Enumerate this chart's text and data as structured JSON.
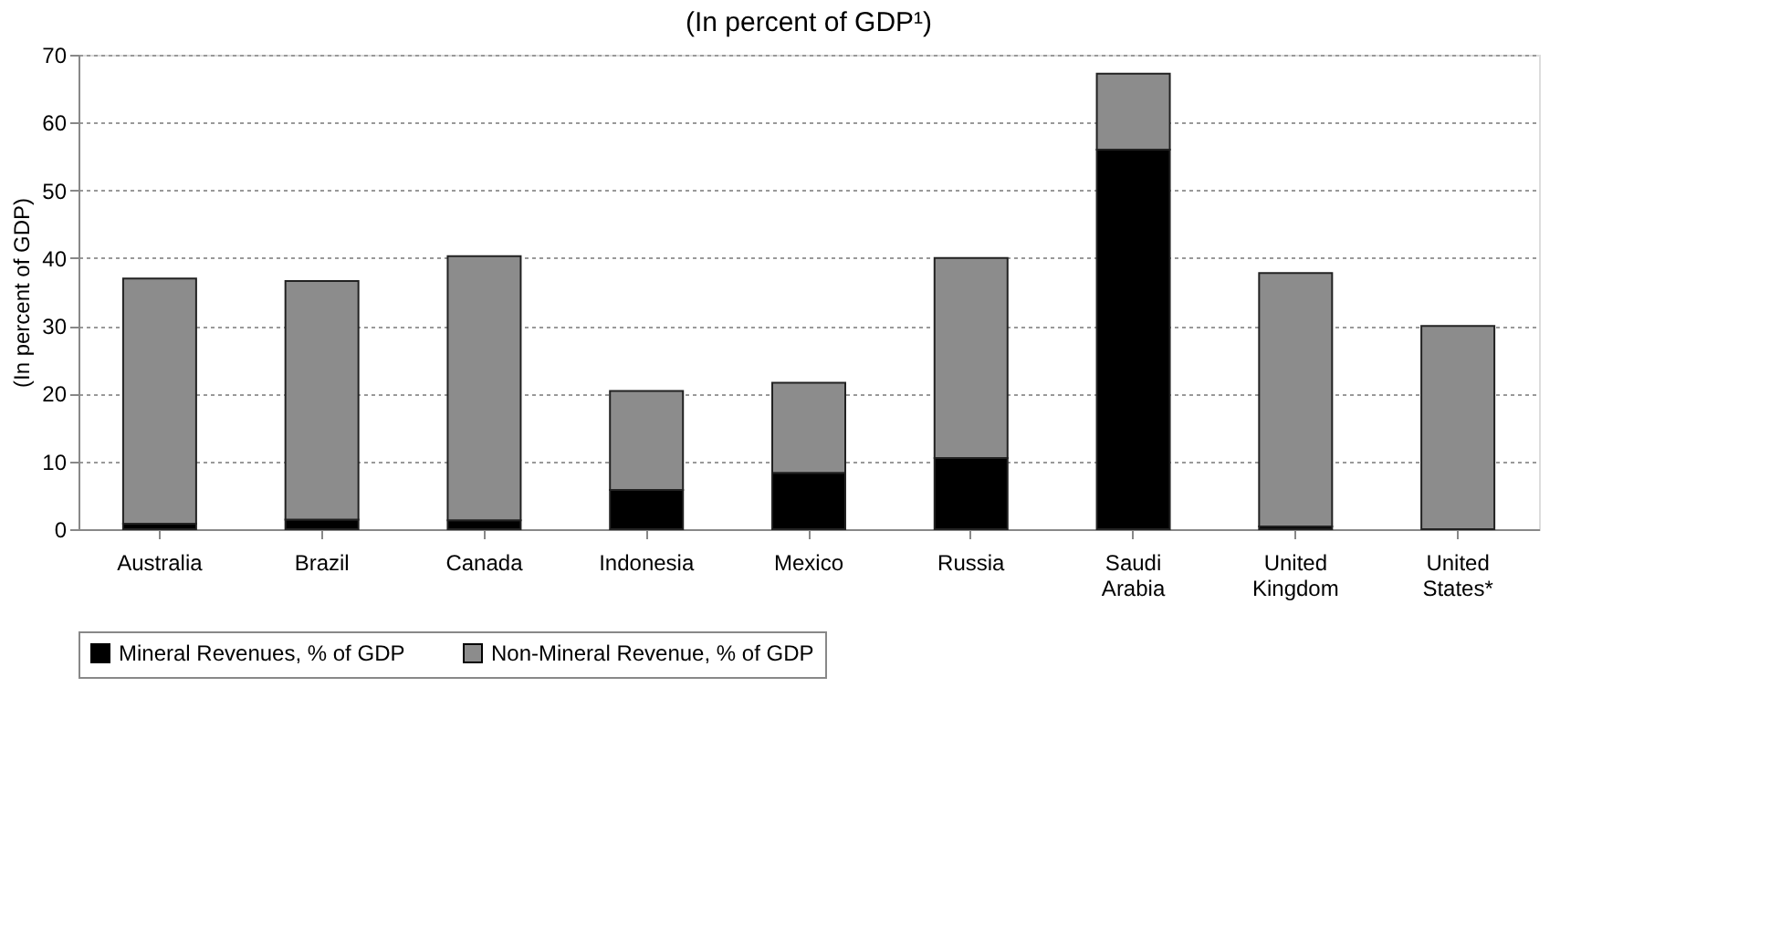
{
  "chart_data": {
    "type": "bar",
    "title": "(In percent of GDP¹)",
    "ylabel": "(In percent of GDP)",
    "categories": [
      "Australia",
      "Brazil",
      "Canada",
      "Indonesia",
      "Mexico",
      "Russia",
      "Saudi Arabia",
      "United Kingdom",
      "United States*"
    ],
    "stacked": true,
    "series": [
      {
        "name": "Mineral Revenues, % of GDP",
        "color": "#000000",
        "values": [
          0.8,
          1.4,
          1.3,
          5.8,
          8.3,
          10.5,
          56.0,
          0.4,
          null
        ]
      },
      {
        "name": "Non-Mineral Revenue, % of GDP",
        "color": "#8c8c8c",
        "values": [
          36.2,
          35.2,
          39.0,
          14.6,
          13.3,
          29.5,
          11.2,
          37.4,
          30.0
        ]
      }
    ],
    "ylim": [
      0,
      70
    ],
    "yticks": [
      0,
      10,
      20,
      30,
      40,
      50,
      60,
      70
    ],
    "grid": "y",
    "legend": "bottom"
  }
}
